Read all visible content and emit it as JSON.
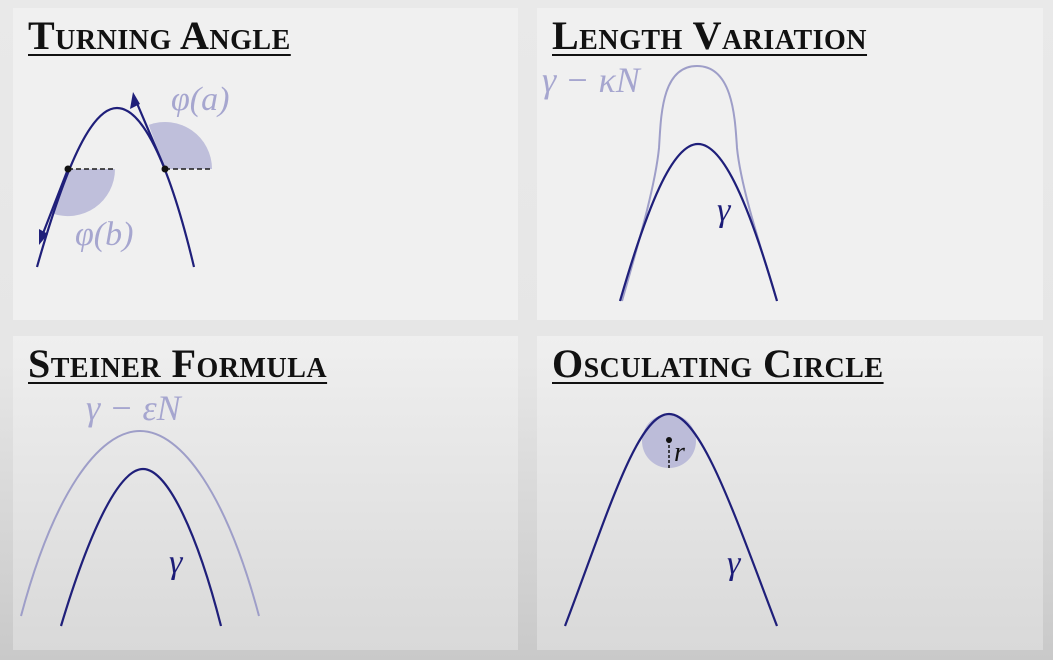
{
  "panels": [
    {
      "title": "Turning Angle",
      "labels": {
        "phi_a": "φ(a)",
        "phi_b": "φ(b)"
      }
    },
    {
      "title": "Length Variation",
      "labels": {
        "offset_curve": "γ − κN",
        "curve": "γ"
      }
    },
    {
      "title": "Steiner Formula",
      "labels": {
        "offset_curve": "γ − εN",
        "curve": "γ"
      }
    },
    {
      "title": "Osculating Circle",
      "labels": {
        "radius": "r",
        "curve": "γ"
      }
    }
  ],
  "colors": {
    "curve": "#1f1f7a",
    "offset_curve": "#9e9ec8",
    "angle_fill": "#b9b9d8",
    "label_dark": "#1c1c78",
    "label_light": "#a6a6cf"
  }
}
